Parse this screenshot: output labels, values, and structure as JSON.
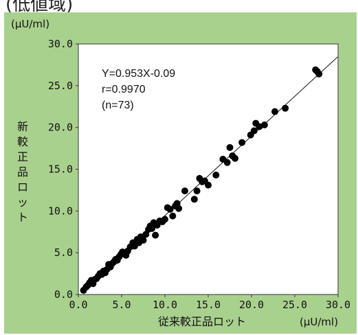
{
  "header": {
    "cut_title": "(低値域)"
  },
  "chart_data": {
    "type": "scatter",
    "title": "",
    "xlabel": "従来較正品ロット",
    "ylabel": "新較正品ロット",
    "x_unit": "(μU/ml)",
    "y_unit": "(μU/ml)",
    "xlim": [
      0.0,
      30.0
    ],
    "ylim": [
      0.0,
      30.0
    ],
    "x_ticks": [
      "0.0",
      "5.0",
      "10.0",
      "15.0",
      "20.0",
      "25.0",
      "30.0"
    ],
    "y_ticks": [
      "0.0",
      "5.0",
      "10.0",
      "15.0",
      "20.0",
      "25.0",
      "30.0"
    ],
    "grid": false,
    "annotations": [
      "Y=0.953X-0.09",
      "r=0.9970",
      "(n=73)"
    ],
    "regression": {
      "slope": 0.953,
      "intercept": -0.09
    },
    "points": [
      [
        0.6,
        0.5
      ],
      [
        0.9,
        0.9
      ],
      [
        1.1,
        1.1
      ],
      [
        1.3,
        1.4
      ],
      [
        1.5,
        1.7
      ],
      [
        1.7,
        1.3
      ],
      [
        1.9,
        1.8
      ],
      [
        2.1,
        1.9
      ],
      [
        2.3,
        2.2
      ],
      [
        2.5,
        2.5
      ],
      [
        2.7,
        2.4
      ],
      [
        2.9,
        2.8
      ],
      [
        3.1,
        2.6
      ],
      [
        3.3,
        3.0
      ],
      [
        3.5,
        3.6
      ],
      [
        3.7,
        3.3
      ],
      [
        3.9,
        3.7
      ],
      [
        4.1,
        3.9
      ],
      [
        4.3,
        4.2
      ],
      [
        4.5,
        4.1
      ],
      [
        4.7,
        4.5
      ],
      [
        4.9,
        4.8
      ],
      [
        5.1,
        5.1
      ],
      [
        5.3,
        4.9
      ],
      [
        5.5,
        4.7
      ],
      [
        5.7,
        5.2
      ],
      [
        6.0,
        5.7
      ],
      [
        6.3,
        6.2
      ],
      [
        6.5,
        5.8
      ],
      [
        6.8,
        6.6
      ],
      [
        7.0,
        6.2
      ],
      [
        7.2,
        6.9
      ],
      [
        7.5,
        6.5
      ],
      [
        7.8,
        7.2
      ],
      [
        8.1,
        7.8
      ],
      [
        8.3,
        8.2
      ],
      [
        8.5,
        7.9
      ],
      [
        8.7,
        8.6
      ],
      [
        8.9,
        7.1
      ],
      [
        9.1,
        8.3
      ],
      [
        9.4,
        8.8
      ],
      [
        9.7,
        8.7
      ],
      [
        10.0,
        9.0
      ],
      [
        10.3,
        10.4
      ],
      [
        10.6,
        10.2
      ],
      [
        10.9,
        9.4
      ],
      [
        11.2,
        10.6
      ],
      [
        11.4,
        10.9
      ],
      [
        11.6,
        10.3
      ],
      [
        12.3,
        12.4
      ],
      [
        13.4,
        11.4
      ],
      [
        13.7,
        12.4
      ],
      [
        14.0,
        13.9
      ],
      [
        14.3,
        13.5
      ],
      [
        15.0,
        13.1
      ],
      [
        15.9,
        14.3
      ],
      [
        16.7,
        16.2
      ],
      [
        17.2,
        15.8
      ],
      [
        17.5,
        17.6
      ],
      [
        17.8,
        16.6
      ],
      [
        18.1,
        16.3
      ],
      [
        18.9,
        18.2
      ],
      [
        19.9,
        19.1
      ],
      [
        20.3,
        19.6
      ],
      [
        20.5,
        20.5
      ],
      [
        20.9,
        20.1
      ],
      [
        21.5,
        20.3
      ],
      [
        22.7,
        21.9
      ],
      [
        23.9,
        22.3
      ],
      [
        27.4,
        26.9
      ],
      [
        27.8,
        26.4
      ],
      [
        27.6,
        26.7
      ],
      [
        14.6,
        13.6
      ]
    ]
  }
}
